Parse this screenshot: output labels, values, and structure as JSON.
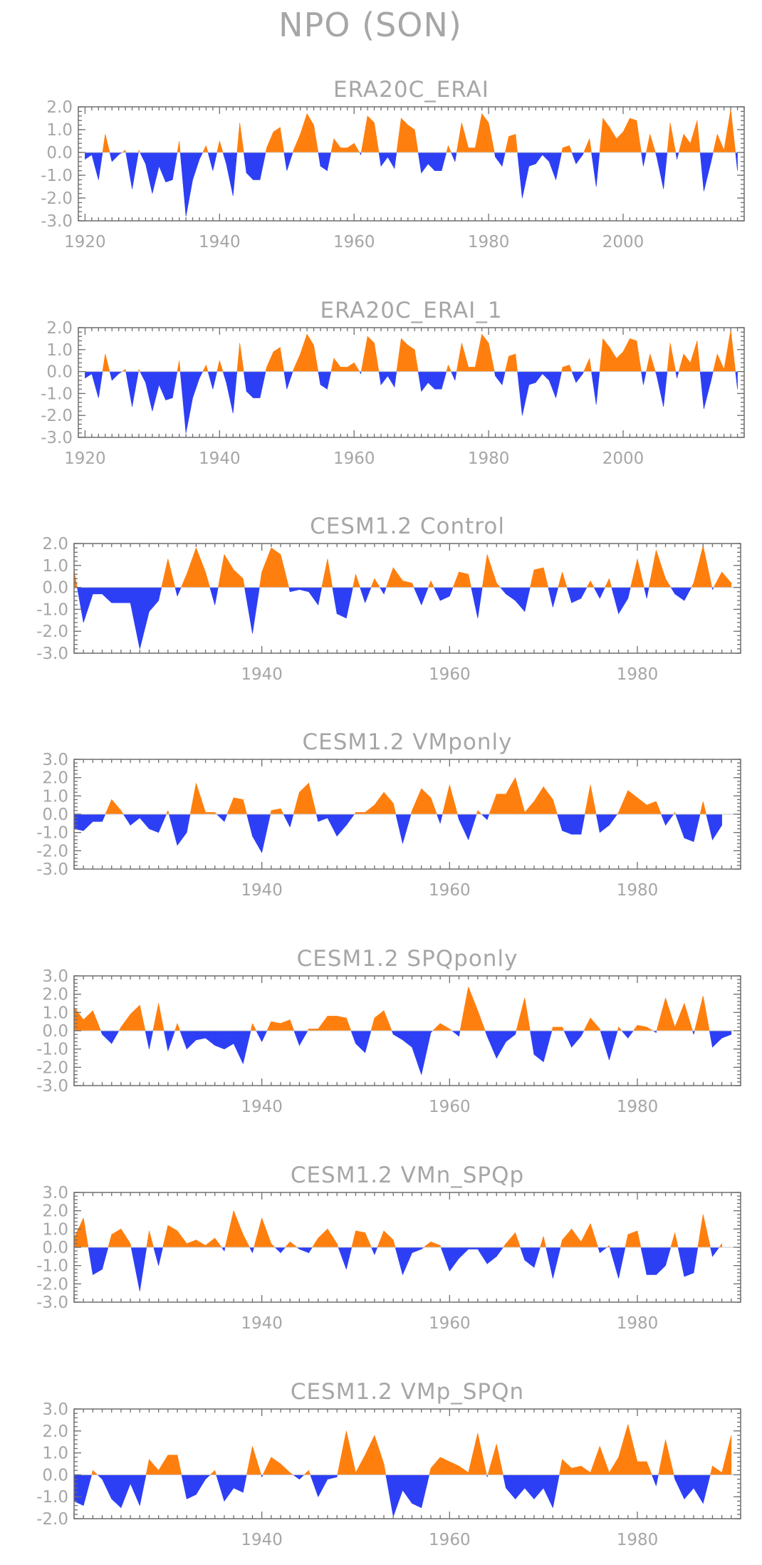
{
  "figure": {
    "title": "NPO (SON)"
  },
  "colors": {
    "positive": "#ff7f0e",
    "negative": "#2d3ff5",
    "text": "#a6a6a6",
    "axis": "#6e6e6e"
  },
  "chart_data": [
    {
      "type": "area",
      "title": "ERA20C_ERAI",
      "xlabel": "",
      "ylabel": "",
      "xlim": [
        1919,
        2018
      ],
      "ylim": [
        -3.0,
        2.0
      ],
      "yticks": [
        "2.0",
        "1.0",
        "0.0",
        "-1.0",
        "-2.0",
        "-3.0"
      ],
      "xticks": [
        "1920",
        "1940",
        "1960",
        "1980",
        "2000"
      ],
      "x_start": 1920,
      "values": [
        -0.3,
        -0.1,
        -1.2,
        0.8,
        -0.4,
        -0.1,
        0.1,
        -1.6,
        0.1,
        -0.5,
        -1.8,
        -0.6,
        -1.3,
        -1.2,
        0.5,
        -2.8,
        -1.2,
        -0.3,
        0.3,
        -0.8,
        0.5,
        -0.5,
        -1.9,
        1.3,
        -0.9,
        -1.2,
        -1.2,
        0.2,
        0.9,
        1.1,
        -0.8,
        0.1,
        0.8,
        1.7,
        1.2,
        -0.6,
        -0.8,
        0.6,
        0.2,
        0.2,
        0.4,
        -0.1,
        1.6,
        1.3,
        -0.6,
        -0.2,
        -0.7,
        1.5,
        1.2,
        1.0,
        -0.9,
        -0.5,
        -0.8,
        -0.8,
        0.3,
        -0.4,
        1.3,
        0.2,
        0.2,
        1.7,
        1.3,
        -0.2,
        -0.6,
        0.7,
        0.8,
        -2.0,
        -0.6,
        -0.5,
        -0.1,
        -0.4,
        -1.2,
        0.2,
        0.3,
        -0.5,
        -0.1,
        0.6,
        -1.5,
        1.5,
        1.1,
        0.6,
        0.9,
        1.5,
        1.4,
        -0.6,
        0.8,
        -0.2,
        -1.6,
        1.3,
        -0.3,
        0.8,
        0.4,
        1.4,
        -1.7,
        -0.5,
        0.8,
        0.1,
        1.9,
        -0.8
      ]
    },
    {
      "type": "area",
      "title": "ERA20C_ERAI_1",
      "xlabel": "",
      "ylabel": "",
      "xlim": [
        1919,
        2018
      ],
      "ylim": [
        -3.0,
        2.0
      ],
      "yticks": [
        "2.0",
        "1.0",
        "0.0",
        "-1.0",
        "-2.0",
        "-3.0"
      ],
      "xticks": [
        "1920",
        "1940",
        "1960",
        "1980",
        "2000"
      ],
      "x_start": 1920,
      "values": [
        -0.3,
        -0.1,
        -1.2,
        0.8,
        -0.4,
        -0.1,
        0.1,
        -1.6,
        0.1,
        -0.5,
        -1.8,
        -0.6,
        -1.3,
        -1.2,
        0.5,
        -2.8,
        -1.2,
        -0.3,
        0.3,
        -0.8,
        0.5,
        -0.5,
        -1.9,
        1.3,
        -0.9,
        -1.2,
        -1.2,
        0.2,
        0.9,
        1.1,
        -0.8,
        0.1,
        0.8,
        1.7,
        1.2,
        -0.6,
        -0.8,
        0.6,
        0.2,
        0.2,
        0.4,
        -0.1,
        1.6,
        1.3,
        -0.6,
        -0.2,
        -0.7,
        1.5,
        1.2,
        1.0,
        -0.9,
        -0.5,
        -0.8,
        -0.8,
        0.3,
        -0.4,
        1.3,
        0.2,
        0.2,
        1.7,
        1.3,
        -0.2,
        -0.6,
        0.7,
        0.8,
        -2.0,
        -0.6,
        -0.5,
        -0.1,
        -0.4,
        -1.2,
        0.2,
        0.3,
        -0.5,
        -0.1,
        0.6,
        -1.5,
        1.5,
        1.1,
        0.6,
        0.9,
        1.5,
        1.4,
        -0.6,
        0.8,
        -0.2,
        -1.6,
        1.3,
        -0.3,
        0.8,
        0.4,
        1.4,
        -1.7,
        -0.5,
        0.8,
        0.1,
        1.9,
        -0.8
      ]
    },
    {
      "type": "area",
      "title": "CESM1.2 Control",
      "xlabel": "",
      "ylabel": "",
      "xlim": [
        1920,
        1991
      ],
      "ylim": [
        -3.0,
        2.0
      ],
      "yticks": [
        "2.0",
        "1.0",
        "0.0",
        "-1.0",
        "-2.0",
        "-3.0"
      ],
      "xticks": [
        "1940",
        "1960",
        "1980"
      ],
      "x_start": 1920,
      "values": [
        0.8,
        -1.6,
        -0.3,
        -0.3,
        -0.7,
        -0.7,
        -0.7,
        -2.8,
        -1.1,
        -0.6,
        1.3,
        -0.4,
        0.6,
        1.8,
        0.7,
        -0.8,
        1.5,
        0.8,
        0.4,
        -2.1,
        0.7,
        1.8,
        1.5,
        -0.2,
        -0.1,
        -0.2,
        -0.8,
        1.3,
        -1.2,
        -1.4,
        0.6,
        -0.7,
        0.4,
        -0.3,
        0.9,
        0.3,
        0.2,
        -0.8,
        0.3,
        -0.6,
        -0.4,
        0.7,
        0.6,
        -1.4,
        1.5,
        0.2,
        -0.3,
        -0.6,
        -1.1,
        0.8,
        0.9,
        -0.9,
        0.7,
        -0.7,
        -0.5,
        0.3,
        -0.5,
        0.4,
        -1.2,
        -0.5,
        1.3,
        -0.5,
        1.7,
        0.4,
        -0.3,
        -0.6,
        0.2,
        1.9,
        -0.1,
        0.7,
        0.2
      ]
    },
    {
      "type": "area",
      "title": "CESM1.2 VMponly",
      "xlabel": "",
      "ylabel": "",
      "xlim": [
        1920,
        1991
      ],
      "ylim": [
        -3.0,
        3.0
      ],
      "yticks": [
        "3.0",
        "2.0",
        "1.0",
        "0.0",
        "-1.0",
        "-2.0",
        "-3.0"
      ],
      "xticks": [
        "1940",
        "1960",
        "1980"
      ],
      "x_start": 1920,
      "values": [
        -0.8,
        -0.9,
        -0.4,
        -0.4,
        0.8,
        0.2,
        -0.6,
        -0.2,
        -0.8,
        -1.0,
        0.2,
        -1.7,
        -1.0,
        1.7,
        0.1,
        0.1,
        -0.4,
        0.9,
        0.8,
        -1.2,
        -2.1,
        0.2,
        0.3,
        -0.7,
        1.2,
        1.7,
        -0.4,
        -0.2,
        -1.2,
        -0.6,
        0.1,
        0.1,
        0.5,
        1.2,
        0.6,
        -1.6,
        0.2,
        1.4,
        0.9,
        -0.5,
        1.6,
        -0.3,
        -1.4,
        0.2,
        -0.3,
        1.1,
        1.1,
        2.0,
        0.1,
        0.7,
        1.5,
        0.8,
        -0.9,
        -1.1,
        -1.1,
        1.6,
        -1.0,
        -0.6,
        0.1,
        1.3,
        0.9,
        0.5,
        0.7,
        -0.6,
        0.1,
        -1.3,
        -1.5,
        0.7,
        -1.4,
        -0.6
      ]
    },
    {
      "type": "area",
      "title": "CESM1.2 SPQponly",
      "xlabel": "",
      "ylabel": "",
      "xlim": [
        1920,
        1991
      ],
      "ylim": [
        -3.0,
        3.0
      ],
      "yticks": [
        "3.0",
        "2.0",
        "1.0",
        "0.0",
        "-1.0",
        "-2.0",
        "-3.0"
      ],
      "xticks": [
        "1940",
        "1960",
        "1980"
      ],
      "x_start": 1920,
      "values": [
        1.3,
        0.6,
        1.1,
        -0.2,
        -0.7,
        0.2,
        0.9,
        1.4,
        -1.0,
        1.5,
        -1.1,
        0.4,
        -1.0,
        -0.5,
        -0.4,
        -0.8,
        -1.0,
        -0.7,
        -1.8,
        0.4,
        -0.6,
        0.5,
        0.4,
        0.6,
        -0.8,
        0.1,
        0.1,
        0.8,
        0.8,
        0.7,
        -0.7,
        -1.2,
        0.7,
        1.1,
        -0.2,
        -0.5,
        -0.9,
        -2.4,
        -0.1,
        0.4,
        0.1,
        -0.3,
        2.4,
        1.1,
        -0.3,
        -1.5,
        -0.6,
        -0.2,
        1.8,
        -1.3,
        -1.7,
        0.2,
        0.2,
        -0.9,
        -0.3,
        0.7,
        0.1,
        -1.6,
        0.2,
        -0.4,
        0.3,
        0.2,
        -0.1,
        1.8,
        0.2,
        1.5,
        -0.2,
        1.9,
        -0.9,
        -0.4,
        -0.2
      ]
    },
    {
      "type": "area",
      "title": "CESM1.2 VMn_SPQp",
      "xlabel": "",
      "ylabel": "",
      "xlim": [
        1920,
        1991
      ],
      "ylim": [
        -3.0,
        3.0
      ],
      "yticks": [
        "3.0",
        "2.0",
        "1.0",
        "0.0",
        "-1.0",
        "-2.0",
        "-3.0"
      ],
      "xticks": [
        "1940",
        "1960",
        "1980"
      ],
      "x_start": 1920,
      "values": [
        0.5,
        1.6,
        -1.5,
        -1.2,
        0.7,
        1.0,
        0.2,
        -2.4,
        0.9,
        -1.0,
        1.2,
        0.9,
        0.2,
        0.4,
        0.1,
        0.5,
        -0.2,
        2.0,
        0.7,
        -0.3,
        1.6,
        0.2,
        -0.3,
        0.3,
        -0.1,
        -0.3,
        0.5,
        1.0,
        0.2,
        -1.2,
        0.9,
        0.8,
        -0.4,
        0.9,
        0.4,
        -1.5,
        -0.3,
        -0.1,
        0.3,
        0.1,
        -1.3,
        -0.6,
        -0.1,
        -0.1,
        -0.9,
        -0.5,
        0.2,
        0.8,
        -0.7,
        -1.1,
        0.6,
        -1.7,
        0.4,
        1.0,
        0.3,
        1.3,
        -0.3,
        0.1,
        -1.7,
        0.7,
        0.9,
        -1.5,
        -1.5,
        -1.0,
        0.8,
        -1.6,
        -1.4,
        1.8,
        -0.5,
        0.2
      ]
    },
    {
      "type": "area",
      "title": "CESM1.2 VMp_SPQn",
      "xlabel": "",
      "ylabel": "",
      "xlim": [
        1920,
        1991
      ],
      "ylim": [
        -2.0,
        3.0
      ],
      "yticks": [
        "3.0",
        "2.0",
        "1.0",
        "0.0",
        "-1.0",
        "-2.0"
      ],
      "xticks": [
        "1940",
        "1960",
        "1980"
      ],
      "x_start": 1920,
      "values": [
        -1.2,
        -1.4,
        0.2,
        -0.2,
        -1.1,
        -1.5,
        -0.4,
        -1.4,
        0.7,
        0.2,
        0.9,
        0.9,
        -1.1,
        -0.9,
        -0.2,
        0.2,
        -1.2,
        -0.6,
        -0.8,
        1.3,
        -0.1,
        0.8,
        0.5,
        0.1,
        -0.2,
        0.2,
        -1.0,
        -0.2,
        -0.1,
        2.0,
        0.1,
        0.9,
        1.8,
        0.5,
        -1.9,
        -0.7,
        -1.3,
        -1.5,
        0.3,
        0.8,
        0.6,
        0.4,
        0.1,
        1.9,
        -0.1,
        1.4,
        -0.6,
        -1.1,
        -0.6,
        -1.1,
        -0.6,
        -1.5,
        0.7,
        0.3,
        0.4,
        0.1,
        1.3,
        0.1,
        0.8,
        2.3,
        0.6,
        0.6,
        -0.5,
        1.6,
        -0.2,
        -1.1,
        -0.6,
        -1.3,
        0.4,
        0.1,
        1.8
      ]
    }
  ]
}
